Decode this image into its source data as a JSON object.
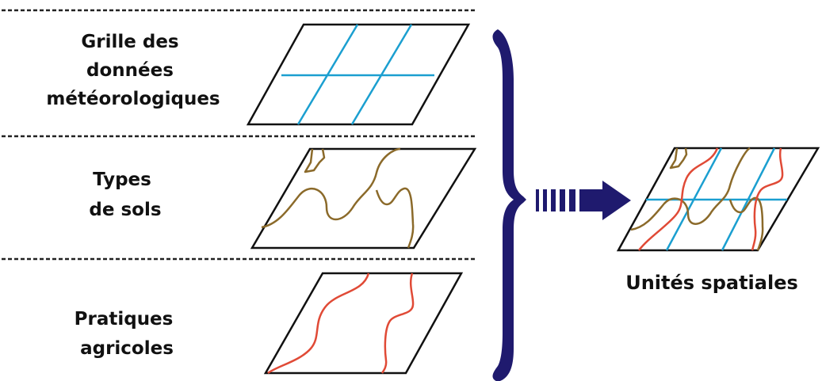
{
  "layers": [
    {
      "id": "meteo",
      "label_lines": [
        "Grille des",
        "données",
        "météorologiques"
      ]
    },
    {
      "id": "soils",
      "label_lines": [
        "Types",
        "de sols"
      ]
    },
    {
      "id": "practices",
      "label_lines": [
        "Pratiques",
        "agricoles"
      ]
    }
  ],
  "result": {
    "label": "Unités spatiales"
  },
  "colors": {
    "brace": "#1f1a6e",
    "arrow": "#1f1a6e",
    "grid": "#1b9fd0",
    "soil": "#8b6a2a",
    "practice": "#e04a36",
    "separator": "#222222"
  }
}
